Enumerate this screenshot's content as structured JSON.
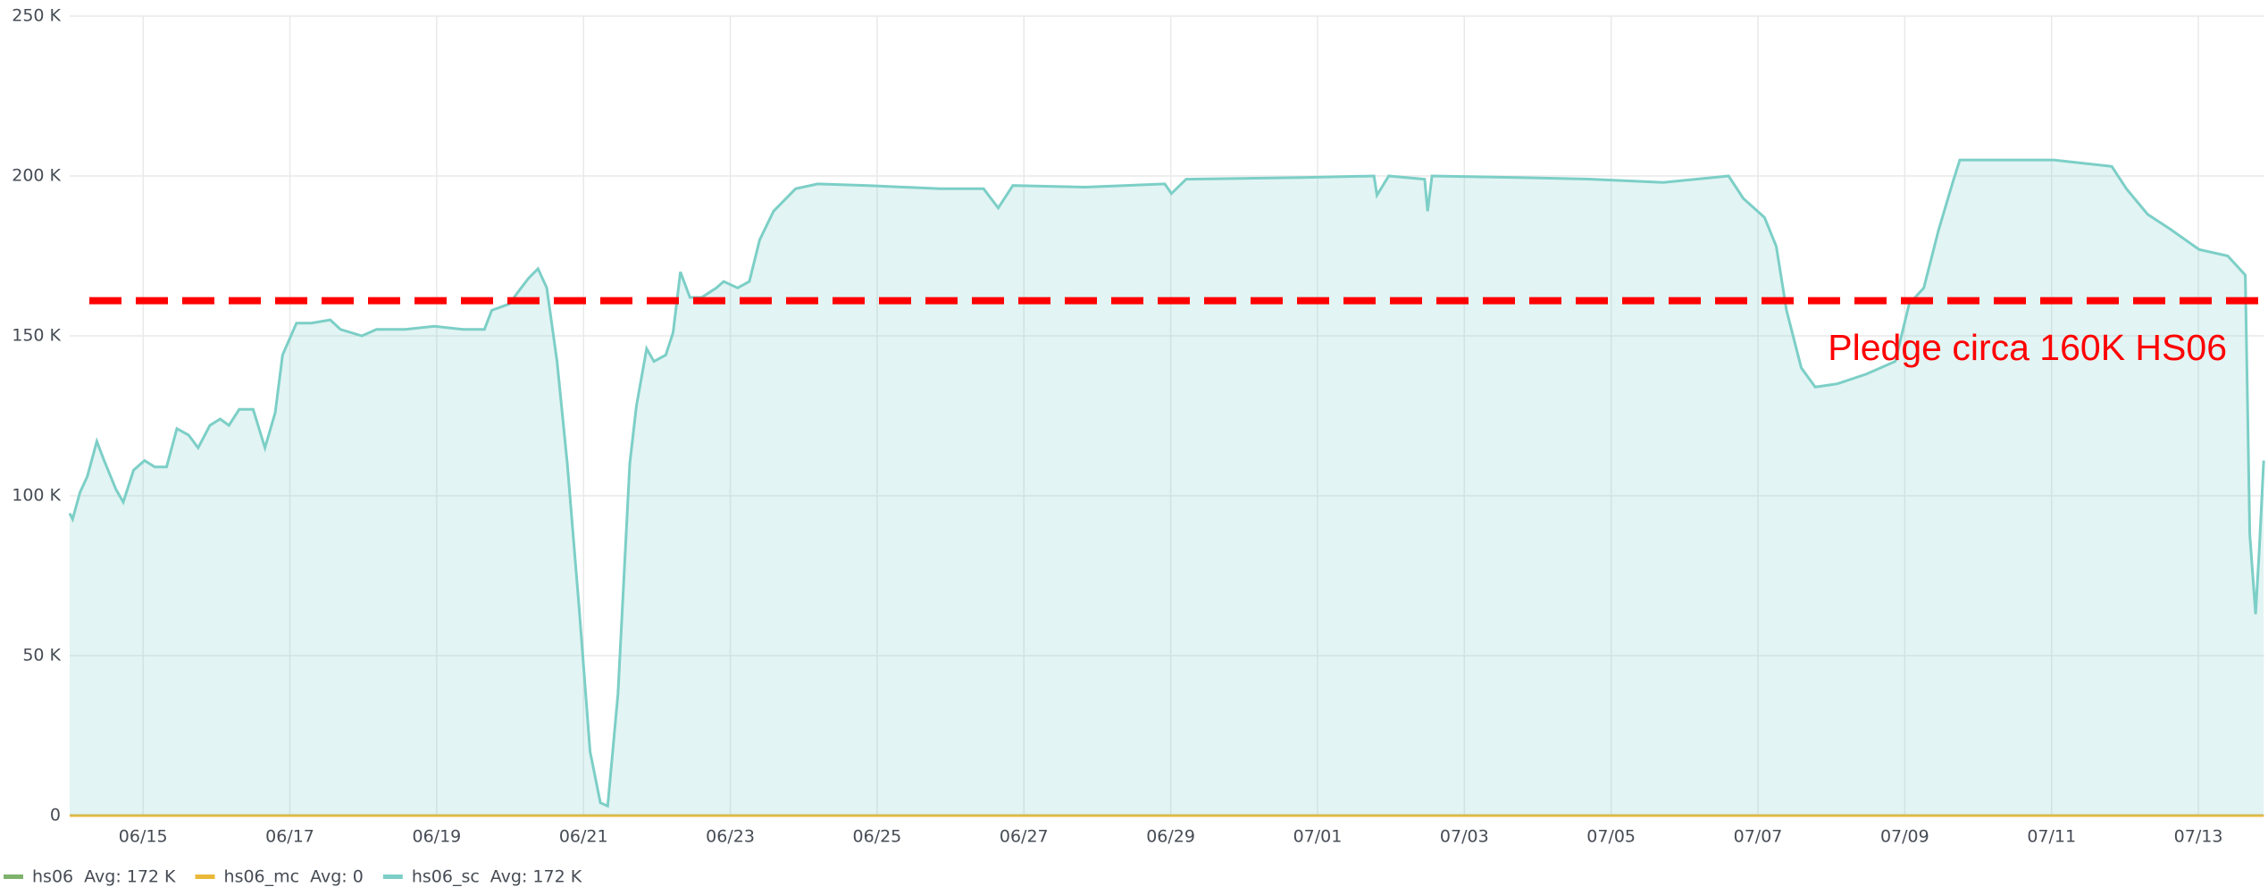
{
  "chart_data": {
    "type": "line",
    "x": [
      0,
      0.04,
      0.14,
      0.24,
      0.37,
      0.47,
      0.63,
      0.73,
      0.87,
      1.02,
      1.16,
      1.32,
      1.46,
      1.62,
      1.75,
      1.91,
      2.05,
      2.17,
      2.31,
      2.5,
      2.66,
      2.8,
      2.9,
      3.09,
      3.29,
      3.55,
      3.69,
      3.98,
      4.18,
      4.57,
      4.97,
      5.36,
      5.65,
      5.75,
      5.99,
      6.15,
      6.25,
      6.38,
      6.5,
      6.64,
      6.78,
      6.94,
      7.09,
      7.23,
      7.33,
      7.47,
      7.63,
      7.72,
      7.86,
      7.96,
      8.12,
      8.22,
      8.32,
      8.45,
      8.61,
      8.81,
      8.91,
      9.1,
      9.26,
      9.4,
      9.59,
      9.89,
      10.19,
      10.88,
      11.86,
      12.45,
      12.65,
      12.85,
      13.83,
      14.92,
      15.01,
      15.21,
      16.79,
      17.77,
      17.81,
      17.97,
      18.46,
      18.5,
      18.56,
      19.74,
      20.73,
      21.71,
      22.6,
      22.8,
      23.09,
      23.25,
      23.39,
      23.59,
      23.78,
      24.08,
      24.47,
      24.87,
      25.06,
      25.26,
      25.46,
      25.66,
      25.75,
      26.25,
      27.03,
      27.82,
      28.02,
      28.31,
      28.61,
      29.01,
      29.4,
      29.64,
      29.7,
      29.78,
      29.83,
      29.89
    ],
    "series": [
      {
        "name": "hs06",
        "color": "#7eb26d",
        "avg_label": "Avg: 172 K"
      },
      {
        "name": "hs06_mc",
        "color": "#eab839",
        "avg_label": "Avg: 0",
        "values": [
          0,
          0,
          0,
          0,
          0,
          0,
          0,
          0,
          0,
          0,
          0,
          0,
          0,
          0,
          0,
          0,
          0,
          0,
          0,
          0,
          0,
          0,
          0,
          0,
          0,
          0,
          0,
          0,
          0,
          0,
          0,
          0,
          0,
          0,
          0,
          0,
          0,
          0,
          0,
          0,
          0,
          0,
          0,
          0,
          0,
          0,
          0,
          0,
          0,
          0,
          0,
          0,
          0,
          0,
          0,
          0,
          0,
          0,
          0,
          0,
          0,
          0,
          0,
          0,
          0,
          0,
          0,
          0,
          0,
          0,
          0,
          0,
          0,
          0,
          0,
          0,
          0,
          0,
          0,
          0,
          0,
          0,
          0,
          0,
          0,
          0,
          0,
          0,
          0,
          0,
          0,
          0,
          0,
          0,
          0,
          0,
          0,
          0,
          0,
          0,
          0,
          0,
          0,
          0,
          0,
          0,
          0,
          0,
          0,
          0
        ]
      },
      {
        "name": "hs06_sc",
        "color": "#7ccfc7",
        "avg_label": "Avg: 172 K",
        "values": [
          94500,
          92700,
          101000,
          106000,
          117000,
          111000,
          102000,
          98000,
          108000,
          111000,
          109000,
          109000,
          121000,
          119000,
          115000,
          122000,
          124000,
          122000,
          127000,
          127000,
          115000,
          126000,
          144000,
          154000,
          154000,
          155000,
          152000,
          150000,
          152000,
          152000,
          153000,
          152000,
          152000,
          158000,
          160000,
          165000,
          168000,
          171000,
          165000,
          142000,
          110000,
          65000,
          20000,
          4000,
          3000,
          38000,
          110000,
          128000,
          146000,
          142000,
          144000,
          151000,
          170000,
          162000,
          162000,
          165000,
          167000,
          165000,
          167000,
          180000,
          189000,
          196000,
          197500,
          197000,
          196000,
          196000,
          190000,
          197000,
          196500,
          197500,
          194500,
          199000,
          199500,
          200000,
          194000,
          200000,
          199000,
          189000,
          200000,
          199500,
          199000,
          198000,
          200000,
          193000,
          187000,
          178000,
          158000,
          140000,
          134000,
          135000,
          138000,
          142000,
          160000,
          165000,
          183000,
          198500,
          205000,
          205000,
          205000,
          203000,
          196000,
          188000,
          183500,
          177000,
          175000,
          169000,
          88000,
          63000,
          83000,
          111000
        ]
      }
    ],
    "xlim": [
      0,
      29.9
    ],
    "xticks": [
      {
        "value": 1,
        "label": "06/15"
      },
      {
        "value": 3,
        "label": "06/17"
      },
      {
        "value": 5,
        "label": "06/19"
      },
      {
        "value": 7,
        "label": "06/21"
      },
      {
        "value": 9,
        "label": "06/23"
      },
      {
        "value": 11,
        "label": "06/25"
      },
      {
        "value": 13,
        "label": "06/27"
      },
      {
        "value": 15,
        "label": "06/29"
      },
      {
        "value": 17,
        "label": "07/01"
      },
      {
        "value": 19,
        "label": "07/03"
      },
      {
        "value": 21,
        "label": "07/05"
      },
      {
        "value": 23,
        "label": "07/07"
      },
      {
        "value": 25,
        "label": "07/09"
      },
      {
        "value": 27,
        "label": "07/11"
      },
      {
        "value": 29,
        "label": "07/13"
      }
    ],
    "ylim": [
      0,
      250000
    ],
    "yticks": [
      0,
      {
        "value": 50000,
        "label": "50 K"
      },
      {
        "value": 100000,
        "label": "100 K"
      },
      {
        "value": 150000,
        "label": "150 K"
      },
      {
        "value": 200000,
        "label": "200 K"
      },
      {
        "value": 250000,
        "label": "250 K"
      }
    ],
    "grid": true,
    "pledge_line": {
      "value": 161000,
      "label": "Pledge circa 160K HS06",
      "color": "#ff0000"
    }
  }
}
